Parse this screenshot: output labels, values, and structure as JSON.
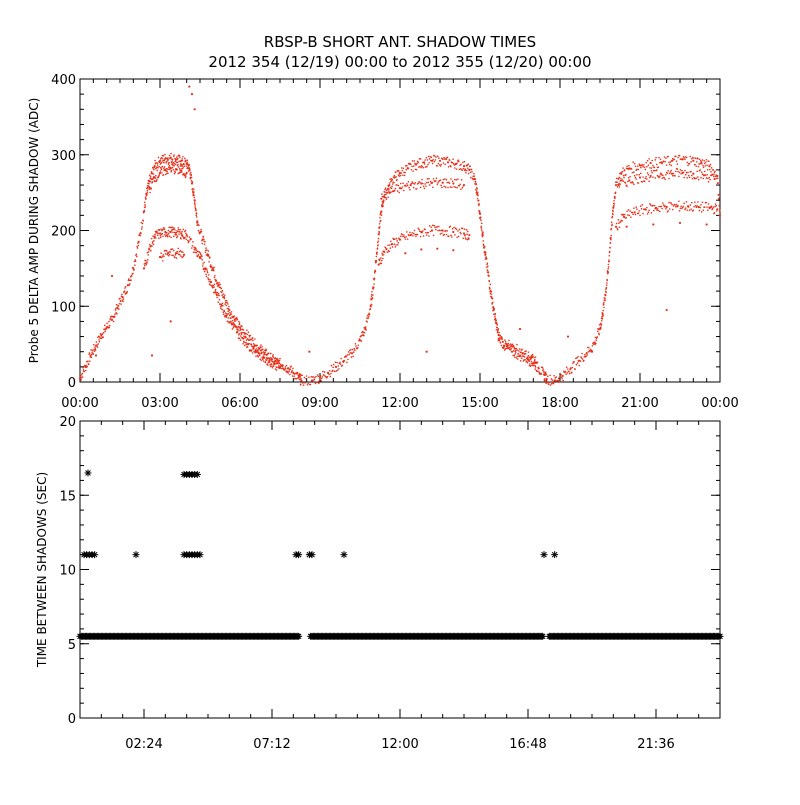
{
  "title": {
    "line1": "RBSP-B SHORT ANT. SHADOW TIMES",
    "line2": "2012 354 (12/19) 00:00 to 2012 355 (12/20) 00:00"
  },
  "chart_data": [
    {
      "type": "scatter",
      "ylabel": "Probe 5 DELTA AMP DURING SHADOW (ADC)",
      "xlabel": "",
      "xlim": [
        0,
        24
      ],
      "ylim": [
        0,
        400
      ],
      "x_ticks": [
        0,
        3,
        6,
        9,
        12,
        15,
        18,
        21,
        24
      ],
      "x_tick_labels": [
        "00:00",
        "03:00",
        "06:00",
        "09:00",
        "12:00",
        "15:00",
        "18:00",
        "21:00",
        "00:00"
      ],
      "y_ticks": [
        0,
        100,
        200,
        300,
        400
      ],
      "y_tick_labels": [
        "0",
        "100",
        "200",
        "300",
        "400"
      ],
      "point_color": "#e8301a",
      "series": [
        {
          "points": [
            [
              0.0,
              5
            ],
            [
              0.2,
              20
            ],
            [
              0.4,
              35
            ],
            [
              0.6,
              48
            ],
            [
              0.8,
              62
            ],
            [
              1.0,
              72
            ],
            [
              1.2,
              82
            ],
            [
              1.4,
              98
            ],
            [
              1.6,
              112
            ],
            [
              1.8,
              128
            ],
            [
              2.0,
              150
            ],
            [
              2.2,
              185
            ],
            [
              2.4,
              225
            ],
            [
              2.5,
              248
            ],
            [
              2.6,
              265
            ],
            [
              2.8,
              285
            ],
            [
              3.0,
              292
            ],
            [
              3.2,
              295
            ],
            [
              3.4,
              296
            ],
            [
              3.6,
              294
            ],
            [
              3.8,
              292
            ],
            [
              4.0,
              288
            ],
            [
              4.1,
              282
            ],
            [
              4.2,
              262
            ],
            [
              4.3,
              240
            ],
            [
              4.4,
              212
            ],
            [
              4.6,
              188
            ],
            [
              4.8,
              168
            ],
            [
              5.0,
              148
            ],
            [
              5.2,
              128
            ],
            [
              5.4,
              112
            ],
            [
              5.6,
              95
            ],
            [
              5.8,
              82
            ],
            [
              6.0,
              72
            ],
            [
              6.2,
              64
            ],
            [
              6.4,
              56
            ],
            [
              6.6,
              48
            ],
            [
              6.8,
              42
            ],
            [
              7.0,
              36
            ],
            [
              7.2,
              30
            ],
            [
              7.4,
              26
            ],
            [
              7.6,
              22
            ],
            [
              7.8,
              18
            ],
            [
              8.0,
              12
            ],
            [
              8.2,
              6
            ],
            [
              8.3,
              2
            ],
            [
              8.7,
              2
            ],
            [
              9.0,
              6
            ],
            [
              9.3,
              12
            ],
            [
              9.6,
              20
            ],
            [
              9.9,
              28
            ],
            [
              10.2,
              38
            ],
            [
              10.5,
              55
            ],
            [
              10.7,
              70
            ],
            [
              10.9,
              100
            ],
            [
              11.0,
              125
            ],
            [
              11.1,
              160
            ],
            [
              11.2,
              195
            ],
            [
              11.3,
              225
            ],
            [
              11.4,
              245
            ],
            [
              11.6,
              260
            ],
            [
              11.8,
              270
            ],
            [
              12.0,
              276
            ],
            [
              12.3,
              282
            ],
            [
              12.6,
              287
            ],
            [
              12.9,
              290
            ],
            [
              13.2,
              292
            ],
            [
              13.5,
              292
            ],
            [
              13.8,
              290
            ],
            [
              14.1,
              288
            ],
            [
              14.4,
              285
            ],
            [
              14.6,
              280
            ],
            [
              14.8,
              268
            ],
            [
              14.9,
              248
            ],
            [
              15.0,
              222
            ],
            [
              15.1,
              195
            ],
            [
              15.2,
              168
            ],
            [
              15.3,
              145
            ],
            [
              15.4,
              120
            ],
            [
              15.5,
              98
            ],
            [
              15.6,
              78
            ],
            [
              15.7,
              62
            ],
            [
              15.9,
              48
            ],
            [
              16.2,
              40
            ],
            [
              16.5,
              35
            ],
            [
              16.8,
              30
            ],
            [
              17.0,
              25
            ],
            [
              17.2,
              18
            ],
            [
              17.4,
              10
            ],
            [
              17.5,
              4
            ],
            [
              17.8,
              2
            ],
            [
              18.1,
              8
            ],
            [
              18.4,
              18
            ],
            [
              18.7,
              28
            ],
            [
              19.0,
              38
            ],
            [
              19.3,
              52
            ],
            [
              19.5,
              70
            ],
            [
              19.6,
              90
            ],
            [
              19.7,
              115
            ],
            [
              19.8,
              145
            ],
            [
              19.9,
              190
            ],
            [
              20.0,
              230
            ],
            [
              20.1,
              260
            ],
            [
              20.3,
              275
            ],
            [
              20.6,
              282
            ],
            [
              21.0,
              286
            ],
            [
              21.4,
              289
            ],
            [
              21.8,
              290
            ],
            [
              22.2,
              292
            ],
            [
              22.6,
              294
            ],
            [
              23.0,
              292
            ],
            [
              23.3,
              290
            ],
            [
              23.6,
              285
            ],
            [
              23.9,
              272
            ],
            [
              24.0,
              220
            ]
          ]
        },
        {
          "points": [
            [
              2.4,
              150
            ],
            [
              2.6,
              175
            ],
            [
              2.8,
              192
            ],
            [
              3.0,
              196
            ],
            [
              3.2,
              198
            ],
            [
              3.4,
              198
            ],
            [
              3.6,
              197
            ],
            [
              3.8,
              196
            ],
            [
              4.0,
              194
            ],
            [
              4.3,
              175
            ],
            [
              4.5,
              165
            ],
            [
              4.7,
              150
            ],
            [
              4.9,
              132
            ],
            [
              5.1,
              118
            ],
            [
              5.3,
              102
            ],
            [
              5.5,
              88
            ],
            [
              5.7,
              76
            ],
            [
              5.9,
              66
            ],
            [
              6.1,
              58
            ],
            [
              6.3,
              50
            ],
            [
              6.5,
              44
            ],
            [
              6.7,
              38
            ],
            [
              6.9,
              32
            ],
            [
              7.1,
              28
            ],
            [
              7.3,
              24
            ],
            [
              7.5,
              20
            ],
            [
              11.2,
              155
            ],
            [
              11.4,
              172
            ],
            [
              11.7,
              182
            ],
            [
              12.0,
              188
            ],
            [
              12.4,
              194
            ],
            [
              12.8,
              198
            ],
            [
              13.2,
              200
            ],
            [
              13.6,
              200
            ],
            [
              14.0,
              198
            ],
            [
              14.4,
              196
            ],
            [
              14.6,
              194
            ],
            [
              15.7,
              55
            ],
            [
              16.0,
              50
            ],
            [
              16.3,
              44
            ],
            [
              16.6,
              38
            ],
            [
              16.9,
              32
            ],
            [
              17.1,
              26
            ],
            [
              20.1,
              205
            ],
            [
              20.4,
              218
            ],
            [
              20.8,
              224
            ],
            [
              21.2,
              228
            ],
            [
              21.6,
              230
            ],
            [
              22.0,
              231
            ],
            [
              22.4,
              232
            ],
            [
              22.8,
              232
            ],
            [
              23.2,
              231
            ],
            [
              23.6,
              230
            ],
            [
              23.9,
              228
            ]
          ]
        },
        {
          "points": [
            [
              2.6,
              255
            ],
            [
              2.8,
              270
            ],
            [
              3.0,
              276
            ],
            [
              3.2,
              280
            ],
            [
              3.4,
              282
            ],
            [
              3.6,
              281
            ],
            [
              3.8,
              279
            ],
            [
              4.0,
              276
            ],
            [
              11.3,
              242
            ],
            [
              11.6,
              250
            ],
            [
              12.0,
              256
            ],
            [
              12.4,
              260
            ],
            [
              12.8,
              262
            ],
            [
              13.2,
              263
            ],
            [
              13.6,
              263
            ],
            [
              14.0,
              262
            ],
            [
              14.4,
              260
            ],
            [
              20.2,
              260
            ],
            [
              20.6,
              266
            ],
            [
              21.0,
              270
            ],
            [
              21.4,
              272
            ],
            [
              21.8,
              274
            ],
            [
              22.2,
              275
            ],
            [
              22.6,
              276
            ],
            [
              23.0,
              275
            ],
            [
              23.4,
              273
            ],
            [
              23.8,
              268
            ],
            [
              3.0,
              165
            ],
            [
              3.3,
              170
            ],
            [
              3.6,
              170
            ],
            [
              3.9,
              168
            ],
            [
              12.2,
              170
            ],
            [
              12.8,
              175
            ],
            [
              13.4,
              176
            ],
            [
              14.0,
              174
            ],
            [
              20.5,
              205
            ],
            [
              21.5,
              208
            ],
            [
              22.5,
              210
            ],
            [
              23.5,
              208
            ]
          ]
        },
        {
          "points": [
            [
              4.1,
              390
            ],
            [
              4.2,
              380
            ],
            [
              4.3,
              360
            ],
            [
              0.6,
              35
            ],
            [
              2.7,
              35
            ],
            [
              3.4,
              80
            ],
            [
              8.6,
              40
            ],
            [
              13.0,
              40
            ],
            [
              18.3,
              60
            ],
            [
              19.2,
              40
            ],
            [
              22.0,
              95
            ],
            [
              1.2,
              140
            ],
            [
              16.5,
              70
            ]
          ]
        }
      ]
    },
    {
      "type": "scatter",
      "ylabel": "TIME BETWEEN SHADOWS (SEC)",
      "xlabel": "",
      "xlim": [
        0,
        24
      ],
      "ylim": [
        0,
        20
      ],
      "x_ticks": [
        2.4,
        7.2,
        12.0,
        16.8,
        21.6
      ],
      "x_tick_labels": [
        "02:24",
        "07:12",
        "12:00",
        "16:48",
        "21:36"
      ],
      "y_ticks": [
        0,
        5,
        10,
        15,
        20
      ],
      "y_tick_labels": [
        "0",
        "5",
        "10",
        "15",
        "20"
      ],
      "marker": "asterisk",
      "point_color": "#000000",
      "band": {
        "x_from": 0.0,
        "x_to": 24.0,
        "y": 5.5
      },
      "gaps": [
        [
          8.2,
          8.6
        ],
        [
          17.4,
          17.6
        ]
      ],
      "series": [
        {
          "points": [
            [
              0.3,
              16.5
            ],
            [
              3.9,
              16.4
            ],
            [
              4.0,
              16.4
            ],
            [
              4.1,
              16.4
            ],
            [
              4.2,
              16.4
            ],
            [
              4.3,
              16.4
            ],
            [
              4.4,
              16.4
            ],
            [
              0.15,
              11.0
            ],
            [
              0.25,
              11.0
            ],
            [
              0.35,
              11.0
            ],
            [
              0.45,
              11.0
            ],
            [
              0.55,
              11.0
            ],
            [
              2.1,
              11.0
            ],
            [
              3.9,
              11.0
            ],
            [
              4.0,
              11.0
            ],
            [
              4.1,
              11.0
            ],
            [
              4.2,
              11.0
            ],
            [
              4.3,
              11.0
            ],
            [
              4.4,
              11.0
            ],
            [
              4.5,
              11.0
            ],
            [
              8.1,
              11.0
            ],
            [
              8.2,
              11.0
            ],
            [
              8.6,
              11.0
            ],
            [
              8.7,
              11.0
            ],
            [
              9.9,
              11.0
            ],
            [
              17.4,
              11.0
            ],
            [
              17.8,
              11.0
            ]
          ]
        }
      ]
    }
  ]
}
